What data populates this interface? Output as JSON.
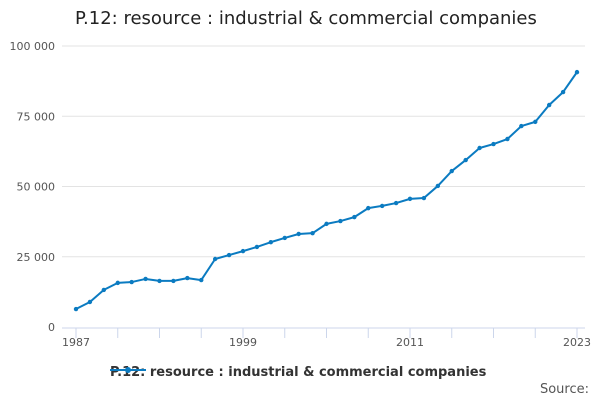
{
  "chart_data": {
    "type": "line",
    "title": "P.12: resource : industrial & commercial companies",
    "xlabel": "",
    "ylabel": "",
    "ylim": [
      0,
      100000
    ],
    "yticks": [
      0,
      25000,
      50000,
      75000,
      100000
    ],
    "ytick_labels": [
      "0",
      "25 000",
      "50 000",
      "75 000",
      "100 000"
    ],
    "xticks": [
      1987,
      1999,
      2011,
      2023
    ],
    "xtick_labels": [
      "1987",
      "1999",
      "2011",
      "2023"
    ],
    "grid": true,
    "legend_position": "bottom",
    "series": [
      {
        "name": "P.12: resource : industrial & commercial companies",
        "color": "#0b7bc1",
        "x": [
          1987,
          1988,
          1989,
          1990,
          1991,
          1992,
          1993,
          1994,
          1995,
          1996,
          1997,
          1998,
          1999,
          2000,
          2001,
          2002,
          2003,
          2004,
          2005,
          2006,
          2007,
          2008,
          2009,
          2010,
          2011,
          2012,
          2013,
          2014,
          2015,
          2016,
          2017,
          2018,
          2019,
          2020,
          2021,
          2022,
          2023
        ],
        "values": [
          6400,
          8900,
          13200,
          15700,
          16000,
          17100,
          16400,
          16400,
          17400,
          16700,
          24200,
          25600,
          27000,
          28500,
          30200,
          31700,
          33100,
          33400,
          36700,
          37700,
          39100,
          42300,
          43100,
          44100,
          45600,
          45900,
          50200,
          55500,
          59400,
          63700,
          65100,
          66900,
          71500,
          73000,
          79000,
          83600,
          90700
        ]
      }
    ]
  },
  "source_label": "Source:"
}
